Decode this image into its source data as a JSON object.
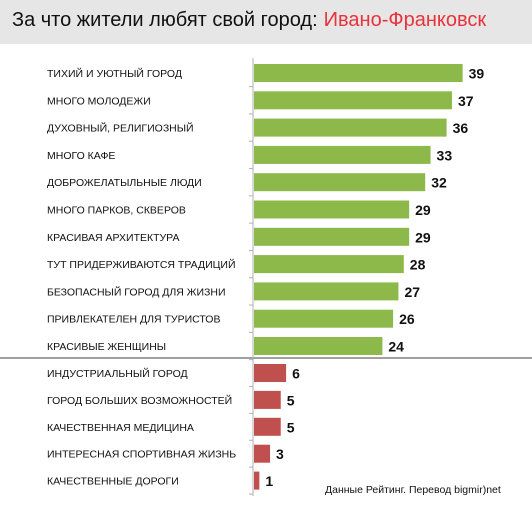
{
  "header": {
    "title_prefix": "За что жители любят свой город:",
    "title_city": "Ивано-Франковск"
  },
  "source_note": "Данные Рейтинг. Перевод bigmir)net",
  "colors": {
    "positive": "#8cb94a",
    "negative": "#c0504d",
    "axis": "#b0b0b0",
    "divider": "#a0a0a0",
    "header_bg": "#e6e6e6",
    "city": "#e8323c"
  },
  "chart_data": {
    "type": "bar",
    "orientation": "horizontal",
    "xlim": [
      0,
      40
    ],
    "grid": false,
    "legend": "none",
    "groups": [
      {
        "color": "#8cb94a",
        "items": [
          {
            "label": "ТИХИЙ И УЮТНЫЙ ГОРОД",
            "value": 39
          },
          {
            "label": "МНОГО МОЛОДЕЖИ",
            "value": 37
          },
          {
            "label": "ДУХОВНЫЙ, РЕЛИГИОЗНЫЙ",
            "value": 36
          },
          {
            "label": "МНОГО КАФЕ",
            "value": 33
          },
          {
            "label": "ДОБРОЖЕЛАТЫЛЬНЫЕ ЛЮДИ",
            "value": 32
          },
          {
            "label": "МНОГО ПАРКОВ, СКВЕРОВ",
            "value": 29
          },
          {
            "label": "КРАСИВАЯ АРХИТЕКТУРА",
            "value": 29
          },
          {
            "label": "ТУТ ПРИДЕРЖИВАЮТСЯ ТРАДИЦИЙ",
            "value": 28
          },
          {
            "label": "БЕЗОПАСНЫЙ ГОРОД ДЛЯ ЖИЗНИ",
            "value": 27
          },
          {
            "label": "ПРИВЛЕКАТЕЛЕН ДЛЯ ТУРИСТОВ",
            "value": 26
          },
          {
            "label": "КРАСИВЫЕ ЖЕНЩИНЫ",
            "value": 24
          }
        ]
      },
      {
        "color": "#c0504d",
        "items": [
          {
            "label": "ИНДУСТРИАЛЬНЫЙ ГОРОД",
            "value": 6
          },
          {
            "label": "ГОРОД БОЛЬШИХ ВОЗМОЖНОСТЕЙ",
            "value": 5
          },
          {
            "label": "КАЧЕСТВЕННАЯ МЕДИЦИНА",
            "value": 5
          },
          {
            "label": "ИНТЕРЕСНАЯ СПОРТИВНАЯ ЖИЗНЬ",
            "value": 3
          },
          {
            "label": "КАЧЕСТВЕННЫЕ ДОРОГИ",
            "value": 1
          }
        ]
      }
    ]
  }
}
